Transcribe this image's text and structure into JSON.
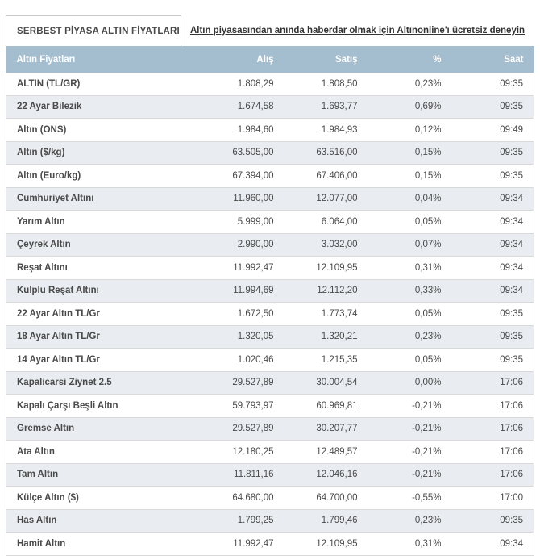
{
  "header": {
    "tab_title": "SERBEST PİYASA ALTIN FİYATLARI",
    "promo_link": "Altın piyasasından anında haberdar olmak için Altınonline'ı ücretsiz deneyin"
  },
  "table": {
    "columns": [
      "Altın Fiyatları",
      "Alış",
      "Satış",
      "%",
      "Saat"
    ],
    "rows": [
      {
        "name": "ALTIN (TL/GR)",
        "alis": "1.808,29",
        "satis": "1.808,50",
        "pct": "0,23%",
        "saat": "09:35"
      },
      {
        "name": "22 Ayar Bilezik",
        "alis": "1.674,58",
        "satis": "1.693,77",
        "pct": "0,69%",
        "saat": "09:35"
      },
      {
        "name": "Altın (ONS)",
        "alis": "1.984,60",
        "satis": "1.984,93",
        "pct": "0,12%",
        "saat": "09:49"
      },
      {
        "name": "Altın ($/kg)",
        "alis": "63.505,00",
        "satis": "63.516,00",
        "pct": "0,15%",
        "saat": "09:35"
      },
      {
        "name": "Altın (Euro/kg)",
        "alis": "67.394,00",
        "satis": "67.406,00",
        "pct": "0,15%",
        "saat": "09:35"
      },
      {
        "name": "Cumhuriyet Altını",
        "alis": "11.960,00",
        "satis": "12.077,00",
        "pct": "0,04%",
        "saat": "09:34"
      },
      {
        "name": "Yarım Altın",
        "alis": "5.999,00",
        "satis": "6.064,00",
        "pct": "0,05%",
        "saat": "09:34"
      },
      {
        "name": "Çeyrek Altın",
        "alis": "2.990,00",
        "satis": "3.032,00",
        "pct": "0,07%",
        "saat": "09:34"
      },
      {
        "name": "Reşat Altını",
        "alis": "11.992,47",
        "satis": "12.109,95",
        "pct": "0,31%",
        "saat": "09:34"
      },
      {
        "name": "Kulplu Reşat Altını",
        "alis": "11.994,69",
        "satis": "12.112,20",
        "pct": "0,33%",
        "saat": "09:34"
      },
      {
        "name": "22 Ayar Altın TL/Gr",
        "alis": "1.672,50",
        "satis": "1.773,74",
        "pct": "0,05%",
        "saat": "09:35"
      },
      {
        "name": "18 Ayar Altın TL/Gr",
        "alis": "1.320,05",
        "satis": "1.320,21",
        "pct": "0,23%",
        "saat": "09:35"
      },
      {
        "name": "14 Ayar Altın TL/Gr",
        "alis": "1.020,46",
        "satis": "1.215,35",
        "pct": "0,05%",
        "saat": "09:35"
      },
      {
        "name": "Kapalicarsi Ziynet 2.5",
        "alis": "29.527,89",
        "satis": "30.004,54",
        "pct": "0,00%",
        "saat": "17:06"
      },
      {
        "name": "Kapalı Çarşı Beşli Altın",
        "alis": "59.793,97",
        "satis": "60.969,81",
        "pct": "-0,21%",
        "saat": "17:06"
      },
      {
        "name": "Gremse Altın",
        "alis": "29.527,89",
        "satis": "30.207,77",
        "pct": "-0,21%",
        "saat": "17:06"
      },
      {
        "name": "Ata Altın",
        "alis": "12.180,25",
        "satis": "12.489,57",
        "pct": "-0,21%",
        "saat": "17:06"
      },
      {
        "name": "Tam Altın",
        "alis": "11.811,16",
        "satis": "12.046,16",
        "pct": "-0,21%",
        "saat": "17:06"
      },
      {
        "name": "Külçe Altın ($)",
        "alis": "64.680,00",
        "satis": "64.700,00",
        "pct": "-0,55%",
        "saat": "17:00"
      },
      {
        "name": "Has Altın",
        "alis": "1.799,25",
        "satis": "1.799,46",
        "pct": "0,23%",
        "saat": "09:35"
      },
      {
        "name": "Hamit Altın",
        "alis": "11.992,47",
        "satis": "12.109,95",
        "pct": "0,31%",
        "saat": "09:34"
      }
    ]
  },
  "colors": {
    "header_bg": "#a4bdcf",
    "header_text": "#ffffff",
    "alt_row_bg": "#e9edf1",
    "text": "#4a4a4a"
  }
}
